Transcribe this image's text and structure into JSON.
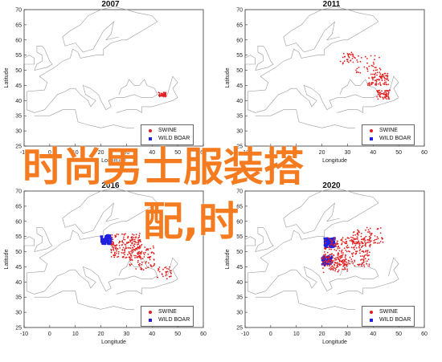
{
  "panels": [
    {
      "title": "2007",
      "ylabel": "Latitude",
      "xlabel": "Longitude"
    },
    {
      "title": "2011",
      "ylabel": "Latitude",
      "xlabel": "Longitude"
    },
    {
      "title": "2016",
      "ylabel": "Latitude",
      "xlabel": "Longitude"
    },
    {
      "title": "2020",
      "ylabel": "Latitude",
      "xlabel": "Longitude"
    }
  ],
  "legend": {
    "swine": "SWINE",
    "wild_boar": "WILD BOAR"
  },
  "colors": {
    "swine": "#e02020",
    "wild_boar": "#2020e0",
    "overlay_text": "#f47b20"
  },
  "axes": {
    "x_ticks": [
      "-10",
      "0",
      "10",
      "20",
      "30",
      "40",
      "50",
      "60"
    ],
    "y_ticks": [
      "70",
      "65",
      "60",
      "55",
      "50",
      "45",
      "40",
      "35",
      "30",
      "25"
    ]
  },
  "overlay": {
    "line1": "时尚男士服装搭",
    "line2": "配,时"
  },
  "watermark": "",
  "chart_data": {
    "type": "scatter",
    "xlabel": "Longitude",
    "ylabel": "Latitude",
    "xlim": [
      -10,
      60
    ],
    "ylim": [
      25,
      70
    ],
    "series": [
      {
        "name": "SWINE",
        "color": "#e02020"
      },
      {
        "name": "WILD BOAR",
        "color": "#2020e0"
      }
    ]
  }
}
